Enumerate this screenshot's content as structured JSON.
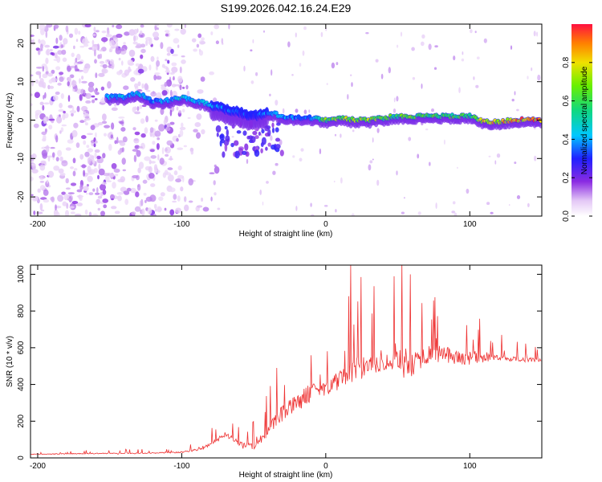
{
  "title": "S199.2026.042.16.24.E29",
  "chart_data": [
    {
      "type": "heatmap",
      "xlabel": "Height of straight line (km)",
      "ylabel": "Frequency (Hz)",
      "xlim": [
        -205,
        150
      ],
      "ylim": [
        -25,
        25
      ],
      "x_ticks": [
        -200,
        -100,
        0,
        100
      ],
      "y_ticks": [
        -20,
        -10,
        0,
        10,
        20
      ],
      "colorbar": {
        "label": "Normalized spectral amplitude",
        "range": [
          0.0,
          1.0
        ],
        "ticks": [
          "0.0",
          "0.2",
          "0.4",
          "0.6",
          "0.8"
        ],
        "tick_values": [
          0.0,
          0.2,
          0.4,
          0.6,
          0.8
        ]
      },
      "ridge": {
        "x": [
          -150,
          -140,
          -130,
          -125,
          -120,
          -110,
          -100,
          -90,
          -80,
          -70,
          -60,
          -50,
          -40,
          -30,
          -20,
          -10,
          0,
          10,
          20,
          30,
          40,
          50,
          60,
          70,
          80,
          90,
          100,
          110,
          120,
          130,
          140,
          150
        ],
        "y": [
          6,
          6,
          7,
          6,
          5,
          5,
          6,
          5,
          4,
          3,
          2,
          1,
          2,
          1,
          0.5,
          0.5,
          0,
          0.5,
          0,
          0,
          0.5,
          1,
          1,
          1,
          1,
          1,
          1,
          -0.5,
          -0.5,
          0,
          0,
          0
        ],
        "amplitude": [
          0.45,
          0.45,
          0.45,
          0.5,
          0.4,
          0.45,
          0.5,
          0.45,
          0.45,
          0.4,
          0.35,
          0.35,
          0.4,
          0.45,
          0.4,
          0.4,
          0.7,
          0.75,
          0.75,
          0.8,
          0.7,
          0.65,
          0.7,
          0.65,
          0.7,
          0.65,
          0.6,
          0.9,
          0.9,
          0.95,
          0.95,
          0.95
        ]
      }
    },
    {
      "type": "line",
      "xlabel": "Height of straight line (km)",
      "ylabel": "SNR (10 * v/v)",
      "xlim": [
        -205,
        150
      ],
      "ylim": [
        0,
        1050
      ],
      "x_ticks": [
        -200,
        -100,
        0,
        100
      ],
      "y_ticks": [
        0,
        200,
        400,
        600,
        800,
        1000
      ],
      "series": [
        {
          "name": "SNR",
          "color": "#ee3333",
          "x": [
            -205,
            -180,
            -150,
            -130,
            -110,
            -100,
            -90,
            -80,
            -70,
            -60,
            -50,
            -40,
            -30,
            -20,
            -10,
            0,
            10,
            20,
            30,
            40,
            50,
            60,
            70,
            80,
            90,
            100,
            110,
            120,
            130,
            140,
            150
          ],
          "y": [
            20,
            22,
            25,
            25,
            28,
            30,
            45,
            70,
            130,
            80,
            60,
            150,
            240,
            300,
            360,
            390,
            420,
            470,
            500,
            520,
            540,
            520,
            560,
            570,
            550,
            540,
            545,
            545,
            540,
            535,
            530
          ],
          "spike_amplitude": [
            10,
            12,
            15,
            15,
            18,
            25,
            40,
            60,
            80,
            70,
            100,
            180,
            260,
            280,
            300,
            280,
            300,
            450,
            300,
            260,
            320,
            450,
            280,
            260,
            240,
            300,
            120,
            90,
            80,
            70,
            60
          ]
        }
      ]
    }
  ]
}
